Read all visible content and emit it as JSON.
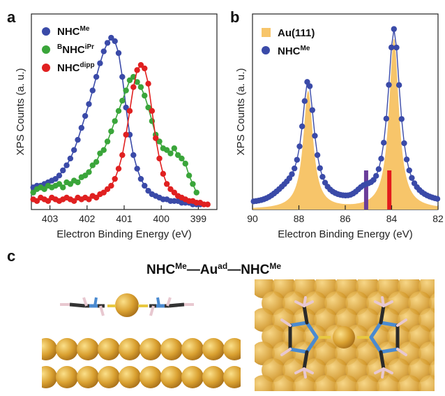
{
  "panels": {
    "a": "a",
    "b": "b",
    "c": "c"
  },
  "structure_title": {
    "part1": "NHC",
    "sup1": "Me",
    "dash1": "—",
    "part2": "Au",
    "sup2": "ad",
    "dash2": "—",
    "part3": "NHC",
    "sup3": "Me"
  },
  "colors": {
    "nhc_me": "#3a4aa8",
    "bnhc_ipr": "#3aa53a",
    "nhc_dipp": "#e02020",
    "au111": "#f7c56a",
    "marker_purple": "#6a3d9a",
    "marker_red": "#e31a1c",
    "gold": "#d9a030",
    "carbon": "#333333",
    "nitrogen": "#4a8ad0",
    "hydrogen": "#e8c8d0"
  },
  "chart_data": [
    {
      "type": "scatter",
      "panel": "a",
      "xlabel": "Electron Binding Energy (eV)",
      "ylabel": "XPS Counts (a. u.)",
      "xlim": [
        403.5,
        398.5
      ],
      "x_reversed": true,
      "ylim": [
        0,
        1.15
      ],
      "xticks": [
        403,
        402,
        401,
        400,
        399
      ],
      "grid": false,
      "legend": "top-left",
      "series": [
        {
          "name": "NHC",
          "name_sup": "Me",
          "name_pre": "",
          "color": "#3a4aa8",
          "x": [
            403.45,
            403.35,
            403.25,
            403.15,
            403.05,
            402.95,
            402.85,
            402.75,
            402.65,
            402.55,
            402.45,
            402.35,
            402.25,
            402.15,
            402.05,
            401.95,
            401.85,
            401.75,
            401.65,
            401.55,
            401.45,
            401.35,
            401.25,
            401.15,
            401.05,
            400.95,
            400.85,
            400.75,
            400.65,
            400.55,
            400.45,
            400.35,
            400.25,
            400.15,
            400.05,
            399.95,
            399.85,
            399.75,
            399.65,
            399.55,
            399.45,
            399.35,
            399.25,
            399.15,
            399.05,
            398.95
          ],
          "y": [
            0.13,
            0.14,
            0.14,
            0.15,
            0.16,
            0.17,
            0.18,
            0.2,
            0.23,
            0.26,
            0.3,
            0.35,
            0.41,
            0.48,
            0.55,
            0.62,
            0.7,
            0.78,
            0.86,
            0.93,
            0.98,
            1.01,
            0.99,
            0.92,
            0.78,
            0.6,
            0.44,
            0.32,
            0.24,
            0.18,
            0.14,
            0.11,
            0.09,
            0.08,
            0.07,
            0.06,
            0.06,
            0.05,
            0.05,
            0.05,
            0.04,
            0.04,
            0.04,
            0.03,
            0.03,
            0.03
          ]
        },
        {
          "name": "NHC",
          "name_sup": "iPr",
          "name_pre": "B",
          "color": "#3aa53a",
          "x": [
            403.45,
            403.35,
            403.25,
            403.15,
            403.05,
            402.95,
            402.85,
            402.75,
            402.65,
            402.55,
            402.45,
            402.35,
            402.25,
            402.15,
            402.05,
            401.95,
            401.85,
            401.75,
            401.65,
            401.55,
            401.45,
            401.35,
            401.25,
            401.15,
            401.05,
            400.95,
            400.85,
            400.75,
            400.65,
            400.55,
            400.45,
            400.35,
            400.25,
            400.15,
            400.05,
            399.95,
            399.85,
            399.75,
            399.65,
            399.55,
            399.45,
            399.35,
            399.25,
            399.15,
            399.05
          ],
          "y": [
            0.1,
            0.12,
            0.13,
            0.12,
            0.14,
            0.13,
            0.14,
            0.15,
            0.13,
            0.16,
            0.15,
            0.17,
            0.16,
            0.19,
            0.2,
            0.22,
            0.26,
            0.28,
            0.33,
            0.35,
            0.4,
            0.46,
            0.52,
            0.58,
            0.64,
            0.7,
            0.76,
            0.78,
            0.75,
            0.72,
            0.67,
            0.6,
            0.52,
            0.44,
            0.4,
            0.36,
            0.35,
            0.33,
            0.36,
            0.32,
            0.3,
            0.27,
            0.2,
            0.15,
            0.1
          ]
        },
        {
          "name": "NHC",
          "name_sup": "dipp",
          "name_pre": "",
          "color": "#e02020",
          "x": [
            403.45,
            403.35,
            403.25,
            403.15,
            403.05,
            402.95,
            402.85,
            402.75,
            402.65,
            402.55,
            402.45,
            402.35,
            402.25,
            402.15,
            402.05,
            401.95,
            401.85,
            401.75,
            401.65,
            401.55,
            401.45,
            401.35,
            401.25,
            401.15,
            401.05,
            400.95,
            400.85,
            400.75,
            400.65,
            400.55,
            400.45,
            400.35,
            400.25,
            400.15,
            400.05,
            399.95,
            399.85,
            399.75,
            399.65,
            399.55,
            399.45,
            399.35,
            399.25,
            399.15,
            399.05,
            398.95,
            398.85,
            398.75
          ],
          "y": [
            0.06,
            0.05,
            0.07,
            0.06,
            0.05,
            0.07,
            0.06,
            0.05,
            0.06,
            0.07,
            0.06,
            0.05,
            0.07,
            0.06,
            0.07,
            0.06,
            0.08,
            0.07,
            0.09,
            0.1,
            0.12,
            0.14,
            0.18,
            0.24,
            0.32,
            0.44,
            0.58,
            0.72,
            0.82,
            0.85,
            0.83,
            0.74,
            0.58,
            0.42,
            0.3,
            0.21,
            0.15,
            0.12,
            0.1,
            0.08,
            0.07,
            0.06,
            0.05,
            0.05,
            0.04,
            0.04,
            0.03,
            0.03
          ]
        }
      ]
    },
    {
      "type": "area",
      "panel": "b",
      "xlabel": "Electron Binding Energy (eV)",
      "ylabel": "XPS Counts (a. u.)",
      "xlim": [
        90,
        82
      ],
      "x_reversed": true,
      "ylim": [
        0,
        1.1
      ],
      "xticks": [
        90,
        88,
        86,
        84,
        82
      ],
      "grid": false,
      "legend": "top-left",
      "area_series": {
        "name": "Au(111)",
        "color": "#f7c56a"
      },
      "scatter_series": {
        "name": "NHC",
        "name_sup": "Me",
        "color": "#3a4aa8"
      },
      "peaks": [
        {
          "center": 87.6,
          "height": 0.68,
          "width": 0.32
        },
        {
          "center": 83.9,
          "height": 0.98,
          "width": 0.32
        }
      ],
      "markers": [
        {
          "x": 85.1,
          "height": 0.22,
          "color": "#6a3d9a"
        },
        {
          "x": 84.1,
          "height": 0.22,
          "color": "#e31a1c"
        }
      ]
    }
  ]
}
